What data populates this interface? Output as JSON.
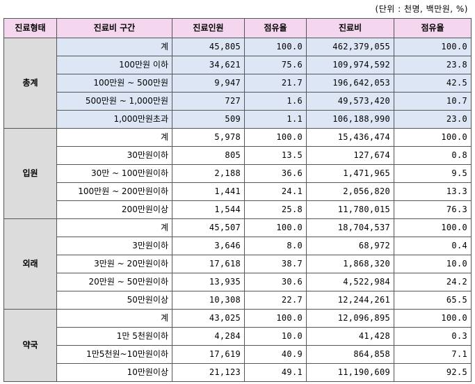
{
  "unit_note": "(단위 : 천명, 백만원, %)",
  "headers": [
    "진료형태",
    "진료비 구간",
    "진료인원",
    "점유율",
    "진료비",
    "점유율"
  ],
  "groups": [
    {
      "name": "총계",
      "highlight": true,
      "rows": [
        [
          "계",
          "45,805",
          "100.0",
          "462,379,055",
          "100.0"
        ],
        [
          "100만원 이하",
          "34,621",
          "75.6",
          "109,974,592",
          "23.8"
        ],
        [
          "100만원 ~ 500만원",
          "9,947",
          "21.7",
          "196,642,053",
          "42.5"
        ],
        [
          "500만원 ~ 1,000만원",
          "727",
          "1.6",
          "49,573,420",
          "10.7"
        ],
        [
          "1,000만원초과",
          "509",
          "1.1",
          "106,188,990",
          "23.0"
        ]
      ]
    },
    {
      "name": "입원",
      "highlight": false,
      "rows": [
        [
          "계",
          "5,978",
          "100.0",
          "15,436,474",
          "100.0"
        ],
        [
          "30만원이하",
          "805",
          "13.5",
          "127,674",
          "0.8"
        ],
        [
          "30만 ~ 100만원이하",
          "2,188",
          "36.6",
          "1,471,965",
          "9.5"
        ],
        [
          "100만원 ~ 200만원이하",
          "1,441",
          "24.1",
          "2,056,820",
          "13.3"
        ],
        [
          "200만원이상",
          "1,544",
          "25.8",
          "11,780,015",
          "76.3"
        ]
      ]
    },
    {
      "name": "외래",
      "highlight": false,
      "rows": [
        [
          "계",
          "45,507",
          "100.0",
          "18,704,537",
          "100.0"
        ],
        [
          "3만원이하",
          "3,646",
          "8.0",
          "68,972",
          "0.4"
        ],
        [
          "3만원 ~ 20만원이하",
          "17,618",
          "38.7",
          "1,868,320",
          "10.0"
        ],
        [
          "20만원 ~ 50만원이하",
          "13,935",
          "30.6",
          "4,522,984",
          "24.2"
        ],
        [
          "50만원이상",
          "10,308",
          "22.7",
          "12,244,261",
          "65.5"
        ]
      ]
    },
    {
      "name": "약국",
      "highlight": false,
      "rows": [
        [
          "계",
          "43,025",
          "100.0",
          "12,096,895",
          "100.0"
        ],
        [
          "1만 5천원이하",
          "4,284",
          "10.0",
          "41,428",
          "0.3"
        ],
        [
          "1만5천원~10만원이하",
          "17,619",
          "40.9",
          "864,858",
          "7.1"
        ],
        [
          "10만원이상",
          "21,123",
          "49.1",
          "11,190,609",
          "92.5"
        ]
      ]
    }
  ],
  "colors": {
    "header_bg": "#f4d6ee",
    "group_bg": "#dcdcdc",
    "highlight_bg": "#dce6f4"
  }
}
